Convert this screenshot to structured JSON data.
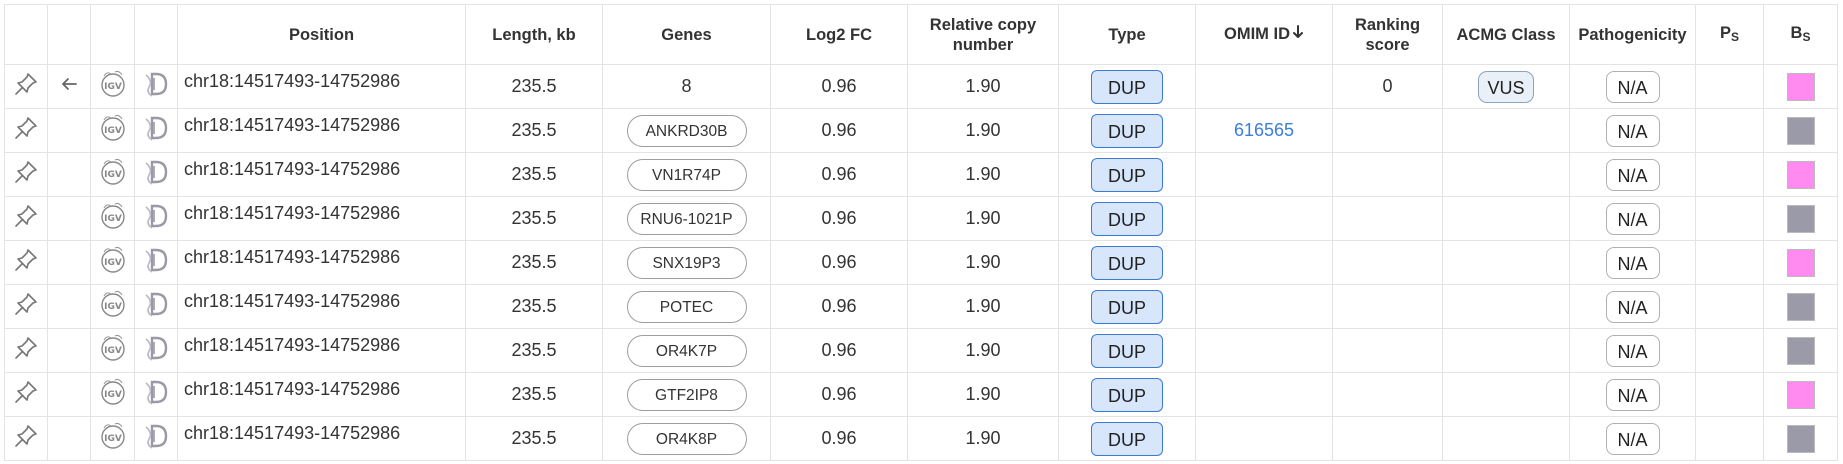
{
  "columns": {
    "position": "Position",
    "length": "Length, kb",
    "genes": "Genes",
    "log2fc": "Log2 FC",
    "rel_copy_line1": "Relative copy",
    "rel_copy_line2": "number",
    "type": "Type",
    "omim": "OMIM ID",
    "ranking_line1": "Ranking",
    "ranking_line2": "score",
    "acmg": "ACMG Class",
    "pathogenicity": "Pathogenicity",
    "ps_letter": "P",
    "ps_sub": "S",
    "bs_letter": "B",
    "bs_sub": "S"
  },
  "icons": {
    "pin": "pin-icon",
    "back": "arrow-left-icon",
    "igv": "igv-icon",
    "decipher": "decipher-icon",
    "sort": "sort-down-arrow-icon"
  },
  "colors": {
    "swatch_pink": "#ff8af0",
    "swatch_gray": "#9b9aa8",
    "omim_link": "#3b7ddd",
    "dup_badge_bg": "#d7e6fb",
    "dup_badge_border": "#3a7bd5"
  },
  "rows": [
    {
      "position": "chr18:14517493-14752986",
      "length": "235.5",
      "genes": "8",
      "gene_is_badge": false,
      "log2fc": "0.96",
      "rel_copy": "1.90",
      "type": "DUP",
      "omim": "",
      "ranking": "0",
      "acmg": "VUS",
      "pathogenicity": "N/A",
      "bs_color": "#ff8af0",
      "has_back": true
    },
    {
      "position": "chr18:14517493-14752986",
      "length": "235.5",
      "genes": "ANKRD30B",
      "gene_is_badge": true,
      "log2fc": "0.96",
      "rel_copy": "1.90",
      "type": "DUP",
      "omim": "616565",
      "ranking": "",
      "acmg": "",
      "pathogenicity": "N/A",
      "bs_color": "#9b9aa8",
      "has_back": false
    },
    {
      "position": "chr18:14517493-14752986",
      "length": "235.5",
      "genes": "VN1R74P",
      "gene_is_badge": true,
      "log2fc": "0.96",
      "rel_copy": "1.90",
      "type": "DUP",
      "omim": "",
      "ranking": "",
      "acmg": "",
      "pathogenicity": "N/A",
      "bs_color": "#ff8af0",
      "has_back": false
    },
    {
      "position": "chr18:14517493-14752986",
      "length": "235.5",
      "genes": "RNU6-1021P",
      "gene_is_badge": true,
      "log2fc": "0.96",
      "rel_copy": "1.90",
      "type": "DUP",
      "omim": "",
      "ranking": "",
      "acmg": "",
      "pathogenicity": "N/A",
      "bs_color": "#9b9aa8",
      "has_back": false
    },
    {
      "position": "chr18:14517493-14752986",
      "length": "235.5",
      "genes": "SNX19P3",
      "gene_is_badge": true,
      "log2fc": "0.96",
      "rel_copy": "1.90",
      "type": "DUP",
      "omim": "",
      "ranking": "",
      "acmg": "",
      "pathogenicity": "N/A",
      "bs_color": "#ff8af0",
      "has_back": false
    },
    {
      "position": "chr18:14517493-14752986",
      "length": "235.5",
      "genes": "POTEC",
      "gene_is_badge": true,
      "log2fc": "0.96",
      "rel_copy": "1.90",
      "type": "DUP",
      "omim": "",
      "ranking": "",
      "acmg": "",
      "pathogenicity": "N/A",
      "bs_color": "#9b9aa8",
      "has_back": false
    },
    {
      "position": "chr18:14517493-14752986",
      "length": "235.5",
      "genes": "OR4K7P",
      "gene_is_badge": true,
      "log2fc": "0.96",
      "rel_copy": "1.90",
      "type": "DUP",
      "omim": "",
      "ranking": "",
      "acmg": "",
      "pathogenicity": "N/A",
      "bs_color": "#9b9aa8",
      "has_back": false
    },
    {
      "position": "chr18:14517493-14752986",
      "length": "235.5",
      "genes": "GTF2IP8",
      "gene_is_badge": true,
      "log2fc": "0.96",
      "rel_copy": "1.90",
      "type": "DUP",
      "omim": "",
      "ranking": "",
      "acmg": "",
      "pathogenicity": "N/A",
      "bs_color": "#ff8af0",
      "has_back": false
    },
    {
      "position": "chr18:14517493-14752986",
      "length": "235.5",
      "genes": "OR4K8P",
      "gene_is_badge": true,
      "log2fc": "0.96",
      "rel_copy": "1.90",
      "type": "DUP",
      "omim": "",
      "ranking": "",
      "acmg": "",
      "pathogenicity": "N/A",
      "bs_color": "#9b9aa8",
      "has_back": false
    }
  ]
}
